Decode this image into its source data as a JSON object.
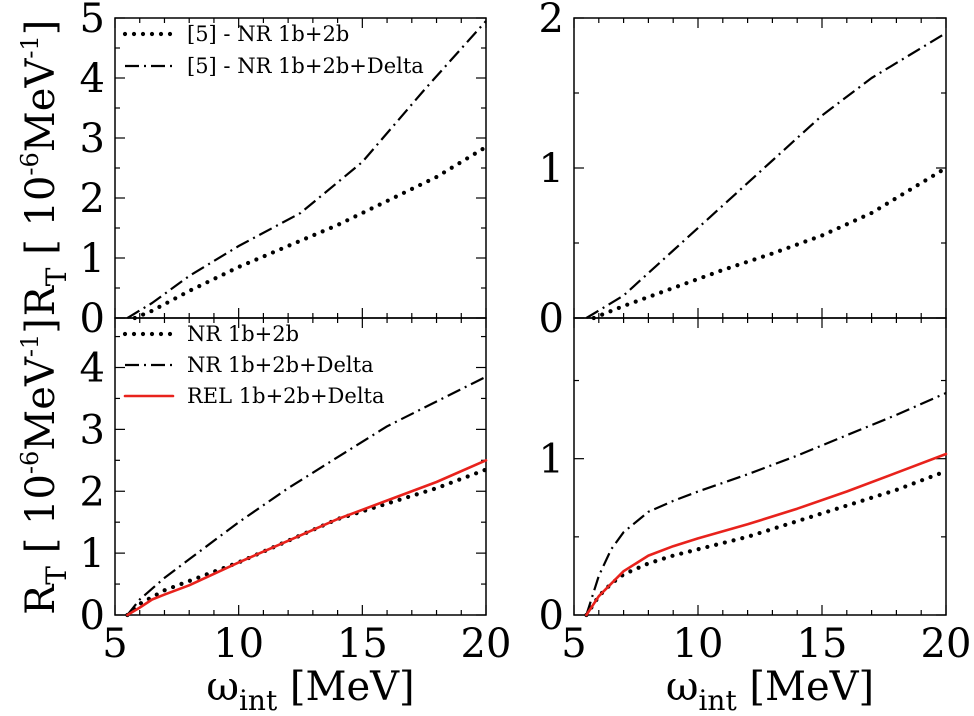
{
  "chart_data": [
    {
      "panel": "top-left",
      "type": "line",
      "xlim": [
        5,
        20
      ],
      "ylim": [
        0,
        5
      ],
      "xticks": [
        "5",
        "10",
        "15",
        "20"
      ],
      "yticks": [
        "0",
        "1",
        "2",
        "3",
        "4",
        "5"
      ],
      "ylabel": {
        "main": "R",
        "sub": "T",
        "unit_pre": " [ 10",
        "unit_sup1": "-6",
        "unit_mid": "MeV",
        "unit_sup2": "-1",
        "unit_post": "]"
      },
      "legend": [
        "[5] - NR 1b+2b",
        "[5] - NR 1b+2b+Delta"
      ],
      "series": [
        {
          "name": "[5] - NR 1b+2b",
          "style": "dotted",
          "color": "#000000",
          "x": [
            5.8,
            6.5,
            8,
            10,
            12,
            14,
            16,
            18,
            20
          ],
          "y": [
            0,
            0.12,
            0.45,
            0.85,
            1.2,
            1.55,
            1.95,
            2.35,
            2.85
          ]
        },
        {
          "name": "[5] - NR 1b+2b+Delta",
          "style": "dashdot",
          "color": "#000000",
          "x": [
            5.5,
            6.5,
            8,
            10,
            12.5,
            15,
            17.5,
            20
          ],
          "y": [
            0,
            0.25,
            0.7,
            1.2,
            1.75,
            2.6,
            3.8,
            4.95
          ]
        }
      ]
    },
    {
      "panel": "top-right",
      "type": "line",
      "xlim": [
        5,
        20
      ],
      "ylim": [
        0,
        2
      ],
      "xticks": [
        "5",
        "10",
        "15",
        "20"
      ],
      "yticks": [
        "0",
        "1",
        "2"
      ],
      "series": [
        {
          "name": "NR 1b+2b",
          "style": "dotted",
          "color": "#000000",
          "x": [
            5.8,
            7,
            9,
            11,
            13,
            15,
            17,
            18.5,
            20
          ],
          "y": [
            0,
            0.08,
            0.2,
            0.32,
            0.43,
            0.55,
            0.7,
            0.85,
            1.0
          ]
        },
        {
          "name": "NR 1b+2b+Delta",
          "style": "dashdot",
          "color": "#000000",
          "x": [
            5.5,
            7,
            9,
            11,
            13,
            15,
            17,
            18.5,
            20
          ],
          "y": [
            0,
            0.15,
            0.45,
            0.75,
            1.05,
            1.35,
            1.6,
            1.75,
            1.9
          ]
        }
      ]
    },
    {
      "panel": "bottom-left",
      "type": "line",
      "xlim": [
        5,
        20
      ],
      "ylim": [
        0,
        4.8
      ],
      "xticks": [
        "5",
        "10",
        "15",
        "20"
      ],
      "yticks": [
        "0",
        "1",
        "2",
        "3",
        "4"
      ],
      "xlabel": {
        "main": "ω",
        "sub": "int",
        "unit": " [MeV]"
      },
      "ylabel": {
        "main": "R",
        "sub": "T",
        "unit_pre": " [ 10",
        "unit_sup1": "-6",
        "unit_mid": "MeV",
        "unit_sup2": "-1",
        "unit_post": "]"
      },
      "legend": [
        "NR 1b+2b",
        "NR 1b+2b+Delta",
        "REL 1b+2b+Delta"
      ],
      "series": [
        {
          "name": "NR 1b+2b",
          "style": "dotted",
          "color": "#000000",
          "x": [
            5.5,
            6,
            7,
            8,
            10,
            12,
            14,
            16,
            18,
            20
          ],
          "y": [
            0,
            0.18,
            0.4,
            0.55,
            0.85,
            1.2,
            1.55,
            1.8,
            2.05,
            2.35
          ]
        },
        {
          "name": "NR 1b+2b+Delta",
          "style": "dashdot",
          "color": "#000000",
          "x": [
            5.5,
            6,
            7,
            8,
            10,
            12,
            14,
            16,
            18,
            20
          ],
          "y": [
            0,
            0.25,
            0.6,
            0.9,
            1.5,
            2.05,
            2.55,
            3.05,
            3.45,
            3.85
          ]
        },
        {
          "name": "REL 1b+2b+Delta",
          "style": "solid",
          "color": "#e8221c",
          "x": [
            5.5,
            6,
            6.5,
            7,
            8,
            10,
            12,
            14,
            16,
            18,
            20
          ],
          "y": [
            0,
            0.12,
            0.25,
            0.33,
            0.48,
            0.85,
            1.2,
            1.55,
            1.85,
            2.15,
            2.5
          ]
        }
      ]
    },
    {
      "panel": "bottom-right",
      "type": "line",
      "xlim": [
        5,
        20
      ],
      "ylim": [
        0,
        1.9
      ],
      "xticks": [
        "5",
        "10",
        "15",
        "20"
      ],
      "yticks": [
        "0",
        "1"
      ],
      "xlabel": {
        "main": "ω",
        "sub": "int",
        "unit": " [MeV]"
      },
      "series": [
        {
          "name": "NR 1b+2b",
          "style": "dotted",
          "color": "#000000",
          "x": [
            5.5,
            6,
            6.5,
            7,
            8,
            9,
            10,
            12,
            14,
            16,
            18,
            20
          ],
          "y": [
            0,
            0.12,
            0.2,
            0.26,
            0.33,
            0.38,
            0.42,
            0.5,
            0.6,
            0.7,
            0.8,
            0.92
          ]
        },
        {
          "name": "NR 1b+2b+Delta",
          "style": "dashdot",
          "color": "#000000",
          "x": [
            5.5,
            6,
            6.5,
            7,
            8,
            9,
            10,
            12,
            14,
            16,
            18,
            20
          ],
          "y": [
            0,
            0.25,
            0.42,
            0.53,
            0.66,
            0.73,
            0.79,
            0.9,
            1.02,
            1.15,
            1.28,
            1.42
          ]
        },
        {
          "name": "REL 1b+2b+Delta",
          "style": "solid",
          "color": "#e8221c",
          "x": [
            5.5,
            6,
            6.5,
            7,
            8,
            9,
            10,
            12,
            14,
            16,
            18,
            20
          ],
          "y": [
            0,
            0.12,
            0.2,
            0.28,
            0.38,
            0.44,
            0.49,
            0.58,
            0.68,
            0.79,
            0.91,
            1.03
          ]
        }
      ]
    }
  ]
}
